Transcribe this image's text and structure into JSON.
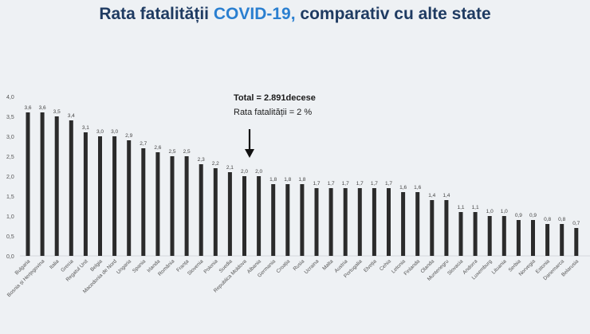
{
  "title": {
    "part1": "Rata fatalității ",
    "accent": "COVID-19,",
    "part2": " comparativ cu alte state"
  },
  "annotation": {
    "total": "Total =  2.891decese",
    "rate": "Rata fatalității = 2 %"
  },
  "colors": {
    "bar": "#2b2b2b",
    "title": "#1f3b62",
    "accent": "#2a7fd0",
    "grid": "#b9c0c6"
  },
  "chart_data": {
    "type": "bar",
    "title": "Rata fatalității COVID-19, comparativ cu alte state",
    "xlabel": "",
    "ylabel": "",
    "ylim": [
      0,
      4
    ],
    "yticks": [
      "0,0",
      "0,5",
      "1,0",
      "1,5",
      "2,0",
      "2,5",
      "3,0",
      "3,5",
      "4,0"
    ],
    "grid": false,
    "categories": [
      "Bulgaria",
      "Bosnia și Herțegovina",
      "Italia",
      "Grecia",
      "Regatul Unit",
      "Belgia",
      "Macedonia de Nord",
      "Ungaria",
      "Spania",
      "Irlanda",
      "România",
      "Franța",
      "Slovenia",
      "Polonia",
      "Suedia",
      "Republica Moldova",
      "Albania",
      "Germania",
      "Croația",
      "Rusia",
      "Ucraina",
      "Malta",
      "Austria",
      "Portugalia",
      "Elveția",
      "Cehia",
      "Letonia",
      "Finlanda",
      "Olanda",
      "Muntenegru",
      "Slovacia",
      "Andorra",
      "Luxemburg",
      "Lituania",
      "Serbia",
      "Norvegia",
      "Estonia",
      "Danemarca",
      "Belarusia"
    ],
    "values": [
      3.6,
      3.6,
      3.5,
      3.4,
      3.1,
      3.0,
      3.0,
      2.9,
      2.7,
      2.6,
      2.5,
      2.5,
      2.3,
      2.2,
      2.1,
      2.0,
      2.0,
      1.8,
      1.8,
      1.8,
      1.7,
      1.7,
      1.7,
      1.7,
      1.7,
      1.7,
      1.6,
      1.6,
      1.4,
      1.4,
      1.1,
      1.1,
      1.0,
      1.0,
      0.9,
      0.9,
      0.8,
      0.8,
      0.7
    ],
    "value_labels": [
      "3,6",
      "3,6",
      "3,5",
      "3,4",
      "3,1",
      "3,0",
      "3,0",
      "2,9",
      "2,7",
      "2,6",
      "2,5",
      "2,5",
      "2,3",
      "2,2",
      "2,1",
      "2,0",
      "2,0",
      "1,8",
      "1,8",
      "1,8",
      "1,7",
      "1,7",
      "1,7",
      "1,7",
      "1,7",
      "1,7",
      "1,6",
      "1,6",
      "1,4",
      "1,4",
      "1,1",
      "1,1",
      "1,0",
      "1,0",
      "0,9",
      "0,9",
      "0,8",
      "0,8",
      "0,7"
    ],
    "highlight": "Republica Moldova"
  }
}
